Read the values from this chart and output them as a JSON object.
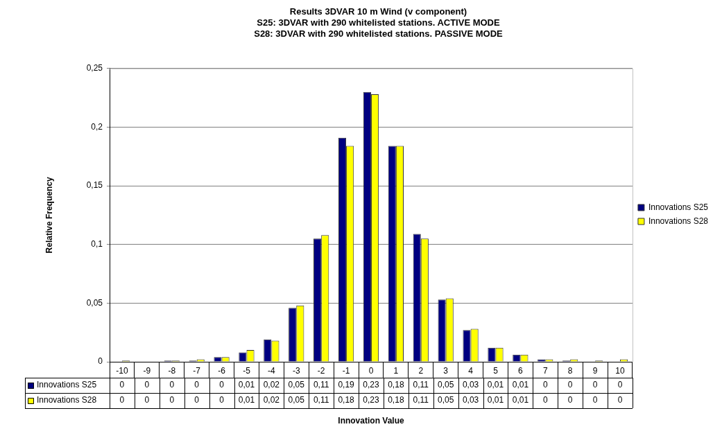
{
  "chart_data": {
    "type": "bar",
    "title": "Results 3DVAR 10 m Wind (v component)",
    "subtitle": "S25: 3DVAR with 290 whitelisted stations. ACTIVE MODE\nS28: 3DVAR with 290 whitelisted stations. PASSIVE MODE",
    "xlabel": "Innovation Value",
    "ylabel": "Relative Frequency",
    "categories": [
      "-10",
      "-9",
      "-8",
      "-7",
      "-6",
      "-5",
      "-4",
      "-3",
      "-2",
      "-1",
      "0",
      "1",
      "2",
      "3",
      "4",
      "5",
      "6",
      "7",
      "8",
      "9",
      "10"
    ],
    "series": [
      {
        "name": "Innovations S25",
        "color": "#000080",
        "values": [
          0,
          0,
          0.001,
          0.001,
          0.004,
          0.008,
          0.019,
          0.046,
          0.105,
          0.191,
          0.23,
          0.184,
          0.109,
          0.053,
          0.027,
          0.012,
          0.006,
          0.002,
          0.001,
          0,
          0
        ],
        "value_labels": [
          "0",
          "0",
          "0",
          "0",
          "0",
          "0,01",
          "0,02",
          "0,05",
          "0,11",
          "0,19",
          "0,23",
          "0,18",
          "0,11",
          "0,05",
          "0,03",
          "0,01",
          "0,01",
          "0",
          "0",
          "0",
          "0"
        ]
      },
      {
        "name": "Innovations S28",
        "color": "#ffff00",
        "values": [
          0.001,
          0,
          0.001,
          0.002,
          0.004,
          0.01,
          0.018,
          0.048,
          0.108,
          0.184,
          0.228,
          0.184,
          0.105,
          0.054,
          0.028,
          0.012,
          0.006,
          0.002,
          0.002,
          0.001,
          0.002
        ],
        "value_labels": [
          "0",
          "0",
          "0",
          "0",
          "0",
          "0,01",
          "0,02",
          "0,05",
          "0,11",
          "0,18",
          "0,23",
          "0,18",
          "0,11",
          "0,05",
          "0,03",
          "0,01",
          "0,01",
          "0",
          "0",
          "0",
          "0"
        ]
      }
    ],
    "ylim": [
      0,
      0.25
    ],
    "yticks": [
      {
        "value": 0,
        "label": "0"
      },
      {
        "value": 0.05,
        "label": "0,05"
      },
      {
        "value": 0.1,
        "label": "0,1"
      },
      {
        "value": 0.15,
        "label": "0,15"
      },
      {
        "value": 0.2,
        "label": "0,2"
      },
      {
        "value": 0.25,
        "label": "0,25"
      }
    ],
    "grid": "y",
    "legend": "right"
  }
}
